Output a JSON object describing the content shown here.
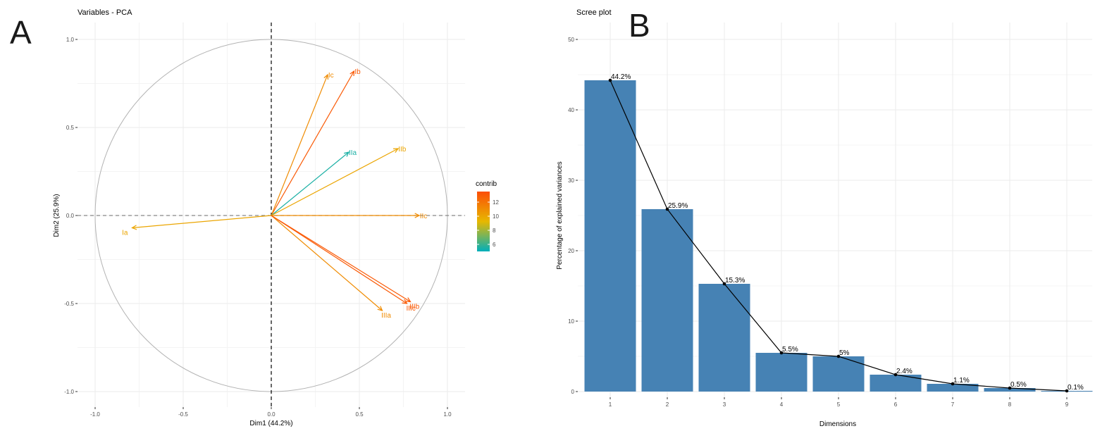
{
  "panels": {
    "a": "A",
    "b": "B"
  },
  "chart_data": [
    {
      "type": "scatter",
      "title": "Variables - PCA",
      "xlabel": "Dim1 (44.2%)",
      "ylabel": "Dim2 (25.9%)",
      "xlim": [
        -1.0,
        1.0
      ],
      "ylim": [
        -1.0,
        1.0
      ],
      "xticks": [
        -1.0,
        -0.5,
        0.0,
        0.5,
        1.0
      ],
      "xtick_labels": [
        "-1.0",
        "-0.5",
        "0.0",
        "0.5",
        "1.0"
      ],
      "yticks": [
        -1.0,
        -0.5,
        0.0,
        0.5,
        1.0
      ],
      "ytick_labels": [
        "-1.0",
        "-0.5",
        "0.0",
        "0.5",
        "1.0"
      ],
      "grid": true,
      "legend": {
        "title": "contrib",
        "placement": "right",
        "ticks": [
          6,
          8,
          10,
          12
        ],
        "tick_labels": [
          "6",
          "8",
          "10",
          "12"
        ],
        "range": [
          5,
          13.5
        ],
        "colors": [
          "#00AFBB",
          "#E7B800",
          "#FC4E07"
        ]
      },
      "arrows": [
        {
          "name": "Ia",
          "x": -0.79,
          "y": -0.07,
          "contrib": 10.0
        },
        {
          "name": "Ib",
          "x": 0.47,
          "y": 0.82,
          "contrib": 13.0
        },
        {
          "name": "Ic",
          "x": 0.32,
          "y": 0.8,
          "contrib": 11.0
        },
        {
          "name": "IIa",
          "x": 0.44,
          "y": 0.36,
          "contrib": 5.5
        },
        {
          "name": "IIb",
          "x": 0.72,
          "y": 0.38,
          "contrib": 10.0
        },
        {
          "name": "IIc",
          "x": 0.84,
          "y": 0.0,
          "contrib": 11.0
        },
        {
          "name": "IIIa",
          "x": 0.63,
          "y": -0.54,
          "contrib": 11.0
        },
        {
          "name": "IIIb",
          "x": 0.79,
          "y": -0.49,
          "contrib": 13.0
        },
        {
          "name": "IIIc",
          "x": 0.77,
          "y": -0.5,
          "contrib": 13.0
        }
      ]
    },
    {
      "type": "bar",
      "title": "Scree plot",
      "xlabel": "Dimensions",
      "ylabel": "Percentage of explained variances",
      "categories": [
        "1",
        "2",
        "3",
        "4",
        "5",
        "6",
        "7",
        "8",
        "9"
      ],
      "values": [
        44.2,
        25.9,
        15.3,
        5.5,
        5.0,
        2.4,
        1.1,
        0.5,
        0.1
      ],
      "value_labels": [
        "44.2%",
        "25.9%",
        "15.3%",
        "5.5%",
        "5%",
        "2.4%",
        "1.1%",
        "0.5%",
        "0.1%"
      ],
      "ylim": [
        0,
        50
      ],
      "yticks": [
        0,
        10,
        20,
        30,
        40,
        50
      ],
      "ytick_labels": [
        "0",
        "10",
        "20",
        "30",
        "40",
        "50"
      ],
      "bar_color": "#4682B4",
      "line_color": "#000000",
      "grid": true
    }
  ]
}
